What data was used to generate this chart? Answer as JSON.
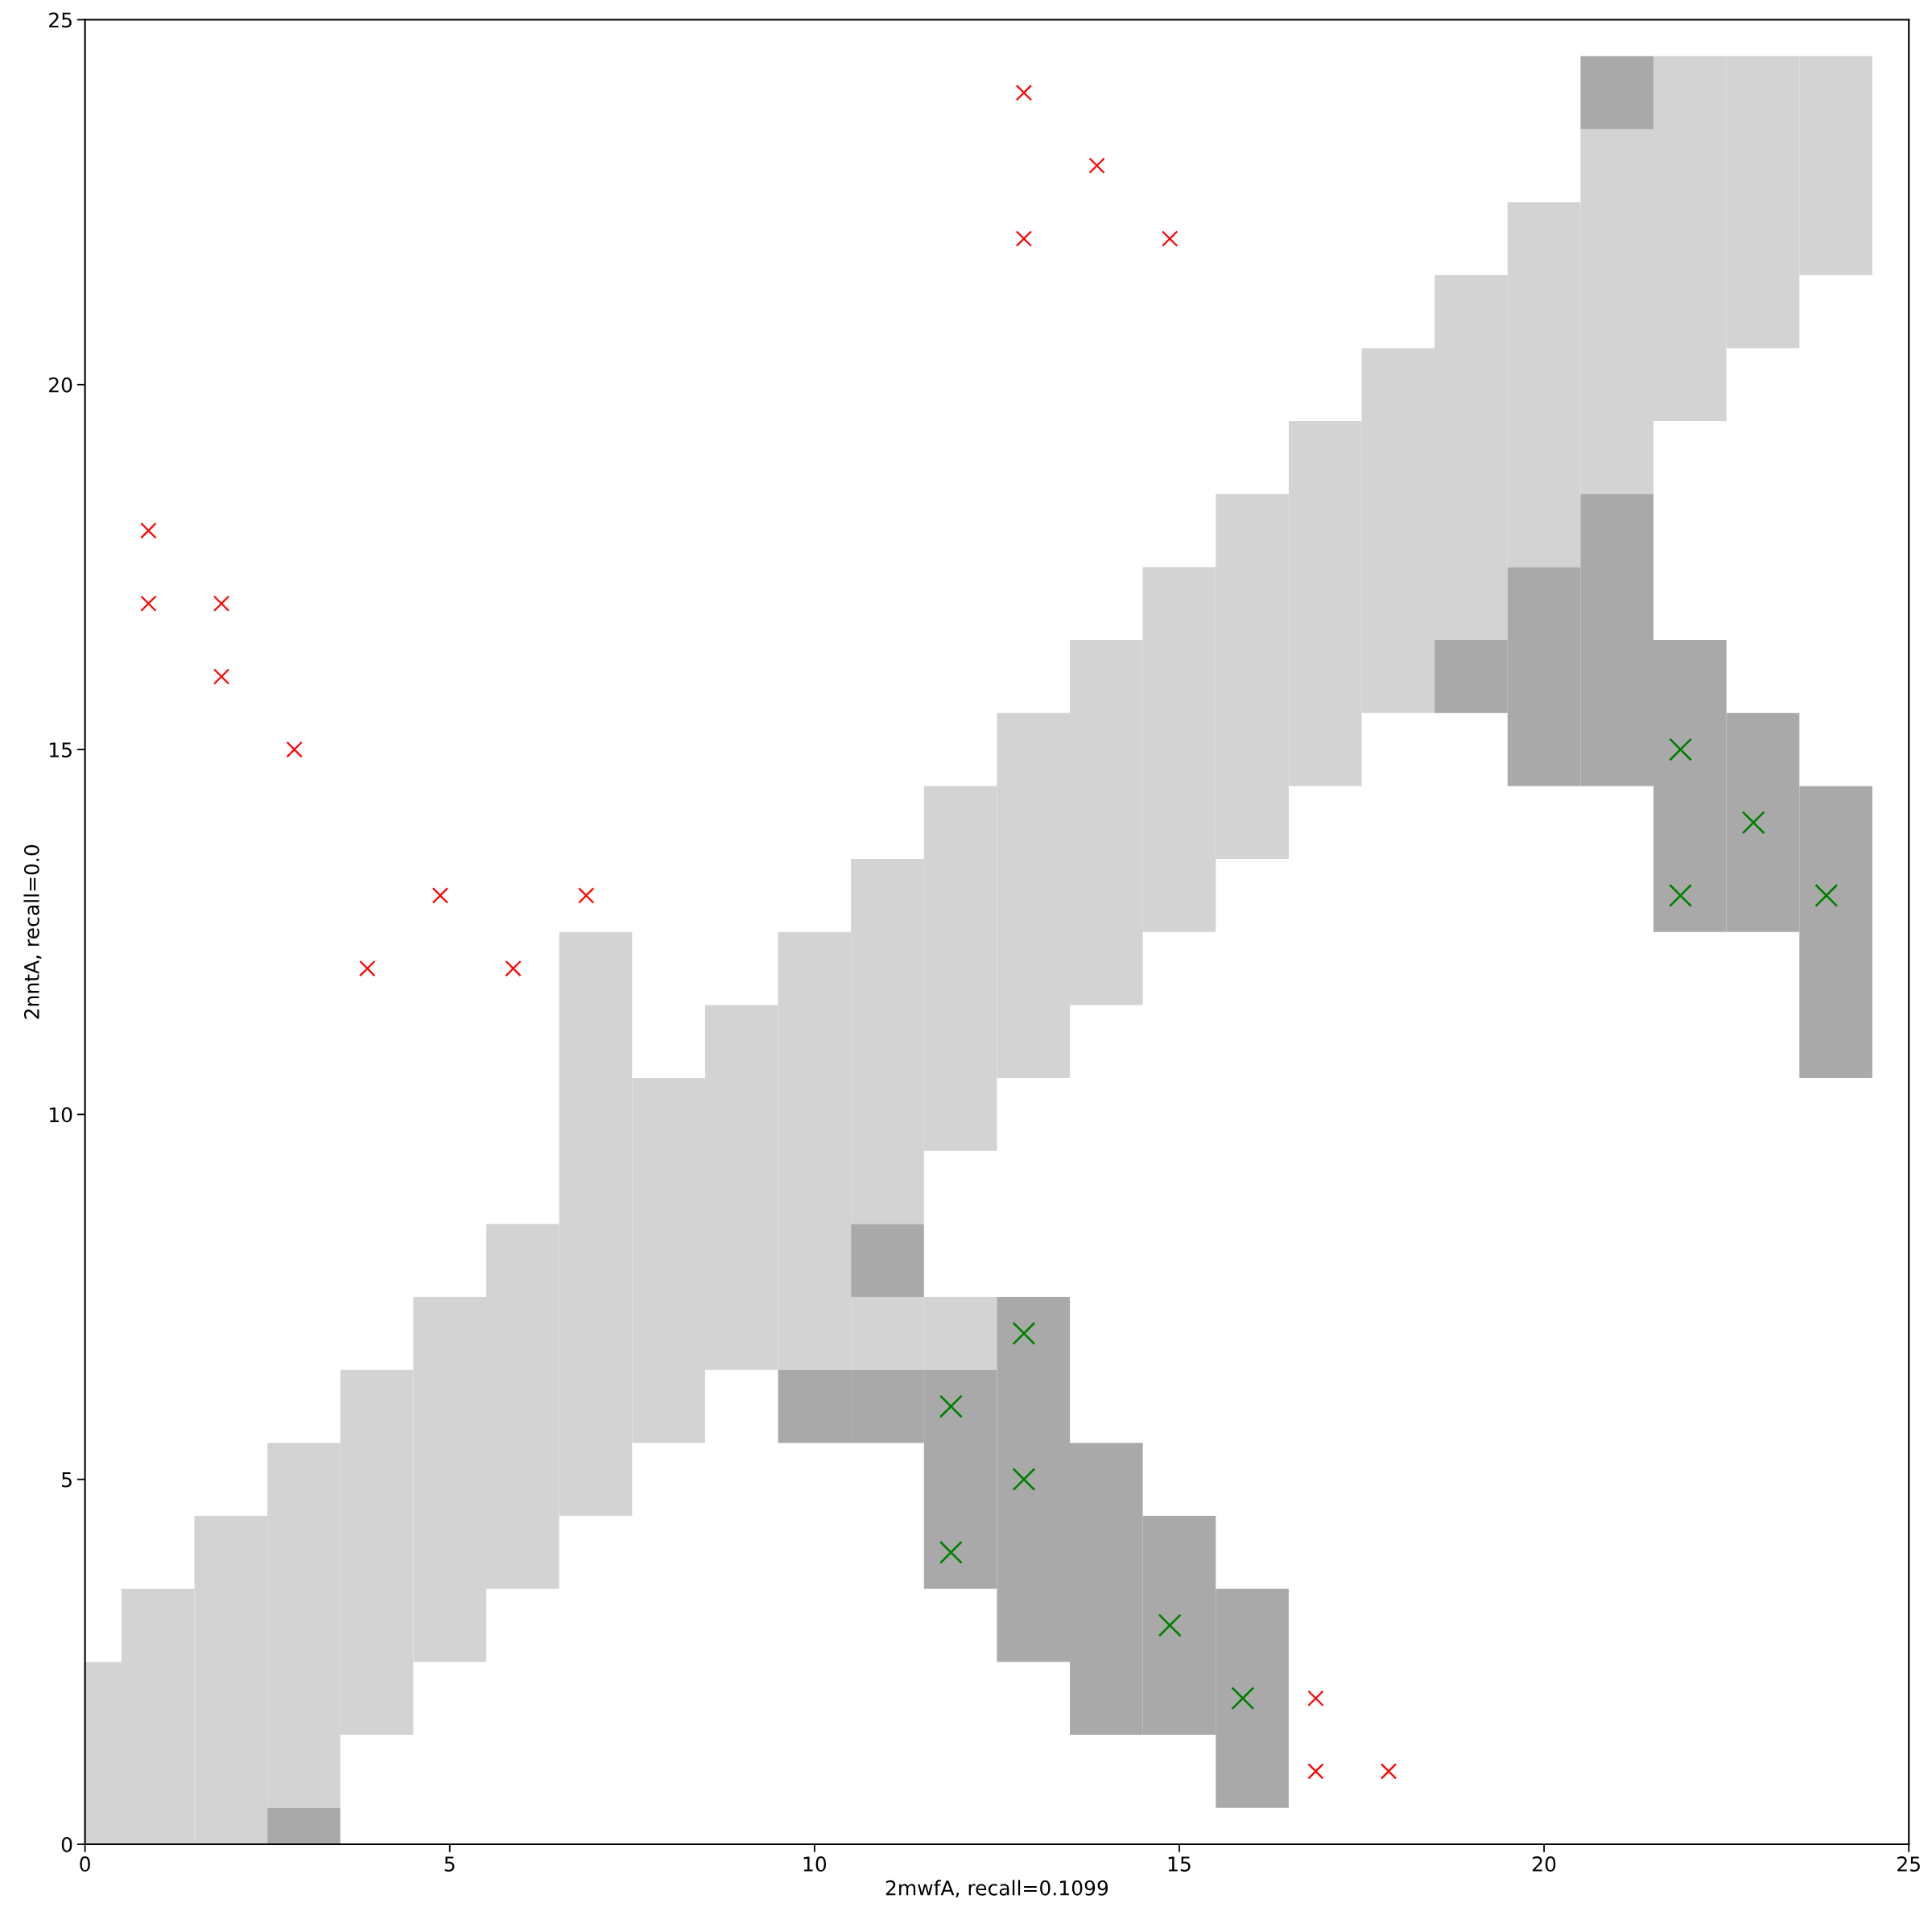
{
  "chart_data": {
    "type": "bar",
    "xlabel": "2mwfA, recall=0.1099",
    "ylabel": "2nntA, recall=0.0",
    "series": [
      {
        "color": "#d3d3d3",
        "x": [
          0,
          1,
          2,
          3,
          4,
          5,
          6,
          7,
          8,
          9,
          10,
          11,
          12,
          13,
          14,
          15,
          16,
          17,
          18,
          19,
          20,
          21,
          22,
          23,
          24
        ],
        "base": [
          0,
          0,
          0,
          0.5,
          1.5,
          2.5,
          3.5,
          4.5,
          5.5,
          6.5,
          6.5,
          6.5,
          6.5,
          10.5,
          11.5,
          12.5,
          13.5,
          14.5,
          15.5,
          16.5,
          17.5,
          18.5,
          19.5,
          20.5,
          21.5
        ],
        "values": [
          2.5,
          3.5,
          4.5,
          5,
          5,
          5,
          5,
          8,
          5,
          5,
          6,
          1,
          1,
          5,
          5,
          5,
          5,
          5,
          5,
          5,
          5,
          5,
          5,
          4,
          3
        ]
      },
      {
        "color": "#d3d3d3",
        "x": [
          11,
          12
        ],
        "base": [
          8.5,
          9.5
        ],
        "values": [
          5,
          5
        ]
      },
      {
        "color": "#a9a9a9",
        "x": [
          3,
          10,
          11,
          12,
          13,
          14,
          15,
          16,
          19,
          20,
          21,
          22,
          23,
          24
        ],
        "base": [
          0,
          5.5,
          5.5,
          3.5,
          2.5,
          1.5,
          1.5,
          0.5,
          15.5,
          14.5,
          14.5,
          12.5,
          12.5,
          10.5
        ],
        "values": [
          0.5,
          1,
          1,
          3,
          5,
          4,
          3,
          3,
          1,
          3,
          4,
          4,
          3,
          4
        ]
      },
      {
        "color": "#a9a9a9",
        "x": [
          11,
          21
        ],
        "base": [
          7.5,
          23.5
        ],
        "values": [
          1,
          1
        ]
      },
      {
        "type": "scatter",
        "color": "#ff0000",
        "x": [
          0.87,
          0.87,
          1.87,
          1.87,
          2.87,
          3.87,
          4.87,
          5.87,
          6.87,
          12.87,
          13.87,
          12.87,
          14.87,
          16.87,
          16.87,
          17.87
        ],
        "values": [
          18,
          17,
          17,
          16,
          15,
          12,
          13,
          12,
          13,
          24,
          23,
          22,
          22,
          2,
          1,
          1
        ]
      },
      {
        "type": "scatter",
        "color": "#008000",
        "x": [
          11.87,
          12.87,
          12.87,
          11.87,
          14.87,
          15.87,
          21.87,
          22.87,
          21.87,
          23.87
        ],
        "values": [
          6,
          7,
          5,
          4,
          3,
          2,
          15,
          14,
          13,
          13
        ]
      }
    ],
    "marker": "cross",
    "xlim": [
      0,
      25
    ],
    "ylim": [
      0,
      25
    ],
    "xticks": [
      0,
      5,
      10,
      15,
      20,
      25
    ],
    "yticks": [
      0,
      5,
      10,
      15,
      20,
      25
    ]
  }
}
